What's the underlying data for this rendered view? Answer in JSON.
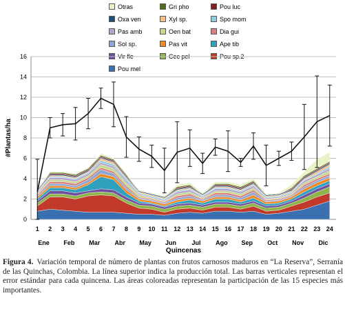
{
  "chart_data": {
    "type": "area",
    "x": [
      1,
      2,
      3,
      4,
      5,
      6,
      7,
      8,
      9,
      10,
      11,
      12,
      13,
      14,
      15,
      16,
      17,
      18,
      19,
      20,
      21,
      22,
      23,
      24
    ],
    "month_labels": [
      "Ene",
      "Feb",
      "Mar",
      "Abr",
      "May",
      "Jun",
      "Jul",
      "Ago",
      "Sep",
      "Oct",
      "Nov",
      "Dic"
    ],
    "xlabel": "Quincenas",
    "ylabel": "#Plantas/ha",
    "ylim": [
      0,
      16
    ],
    "yticks": [
      0,
      2,
      4,
      6,
      8,
      10,
      12,
      14,
      16
    ],
    "legend": [
      "Otras",
      "Gri pho",
      "Pou luc",
      "Oxa ven",
      "Xyl sp.",
      "Spo mom",
      "Pas amb",
      "Oen bat",
      "Dia gui",
      "Sol sp.",
      "Pas vit",
      "Ape tib",
      "Vir fle",
      "Cec pel",
      "Pou sp.2",
      "Pou mel"
    ],
    "colors": {
      "Pou mel": "#3a6fb0",
      "Pou sp.2": "#c0392b",
      "Cec pel": "#8fb54a",
      "Vir fle": "#6f4f9e",
      "Ape tib": "#2fa0bd",
      "Pas vit": "#f08a24",
      "Sol sp.": "#8ba7d6",
      "Dia gui": "#d9807e",
      "Oen bat": "#c6d98f",
      "Pas amb": "#b3a3cf",
      "Spo mom": "#8fcfe0",
      "Xyl sp.": "#f7c08a",
      "Oxa ven": "#1f4e79",
      "Pou luc": "#7f1f1f",
      "Gri pho": "#4e6b1f",
      "Otras": "#e8f2c4"
    },
    "series": [
      {
        "name": "Pou mel",
        "values": [
          0.8,
          1.0,
          0.9,
          0.8,
          0.7,
          0.7,
          0.7,
          0.6,
          0.5,
          0.5,
          0.4,
          0.6,
          0.7,
          0.6,
          0.8,
          0.8,
          0.7,
          0.8,
          0.5,
          0.6,
          0.8,
          1.0,
          1.4,
          1.8
        ]
      },
      {
        "name": "Pou sp.2",
        "values": [
          0.5,
          1.2,
          1.3,
          1.2,
          1.6,
          1.7,
          1.6,
          1.0,
          0.6,
          0.5,
          0.3,
          0.4,
          0.4,
          0.3,
          0.4,
          0.4,
          0.3,
          0.5,
          0.3,
          0.3,
          0.5,
          0.7,
          0.8,
          0.8
        ]
      },
      {
        "name": "Cec pel",
        "values": [
          0.3,
          0.3,
          0.3,
          0.3,
          0.3,
          0.3,
          0.3,
          0.3,
          0.3,
          0.3,
          0.3,
          0.3,
          0.3,
          0.3,
          0.3,
          0.3,
          0.3,
          0.3,
          0.3,
          0.3,
          0.3,
          0.4,
          0.5,
          0.6
        ]
      },
      {
        "name": "Vir fle",
        "values": [
          0.2,
          0.3,
          0.3,
          0.3,
          0.2,
          0.3,
          0.3,
          0.3,
          0.2,
          0.2,
          0.2,
          0.2,
          0.2,
          0.2,
          0.2,
          0.2,
          0.2,
          0.2,
          0.2,
          0.2,
          0.2,
          0.3,
          0.3,
          0.3
        ]
      },
      {
        "name": "Ape tib",
        "values": [
          0.2,
          0.3,
          0.3,
          0.3,
          0.6,
          1.2,
          1.0,
          0.4,
          0.2,
          0.1,
          0.1,
          0.2,
          0.3,
          0.2,
          0.3,
          0.3,
          0.2,
          0.3,
          0.2,
          0.2,
          0.2,
          0.3,
          0.3,
          0.3
        ]
      },
      {
        "name": "Pas vit",
        "values": [
          0.2,
          0.2,
          0.2,
          0.2,
          0.2,
          0.3,
          0.3,
          0.3,
          0.2,
          0.2,
          0.2,
          0.2,
          0.2,
          0.2,
          0.2,
          0.2,
          0.2,
          0.3,
          0.2,
          0.2,
          0.2,
          0.3,
          0.3,
          0.3
        ]
      },
      {
        "name": "Sol sp.",
        "values": [
          0.1,
          0.2,
          0.2,
          0.2,
          0.3,
          0.4,
          0.3,
          0.2,
          0.1,
          0.1,
          0.1,
          0.2,
          0.2,
          0.1,
          0.2,
          0.2,
          0.2,
          0.3,
          0.1,
          0.1,
          0.1,
          0.2,
          0.2,
          0.2
        ]
      },
      {
        "name": "Dia gui",
        "values": [
          0.1,
          0.2,
          0.2,
          0.2,
          0.2,
          0.2,
          0.2,
          0.2,
          0.1,
          0.1,
          0.1,
          0.2,
          0.2,
          0.1,
          0.2,
          0.2,
          0.2,
          0.2,
          0.1,
          0.1,
          0.1,
          0.2,
          0.2,
          0.2
        ]
      },
      {
        "name": "Oen bat",
        "values": [
          0.1,
          0.2,
          0.2,
          0.2,
          0.2,
          0.3,
          0.3,
          0.3,
          0.2,
          0.1,
          0.1,
          0.2,
          0.2,
          0.1,
          0.2,
          0.2,
          0.2,
          0.2,
          0.1,
          0.1,
          0.1,
          0.2,
          0.2,
          0.3
        ]
      },
      {
        "name": "Pas amb",
        "values": [
          0.1,
          0.2,
          0.2,
          0.2,
          0.2,
          0.2,
          0.2,
          0.2,
          0.1,
          0.1,
          0.1,
          0.2,
          0.2,
          0.1,
          0.2,
          0.2,
          0.2,
          0.2,
          0.1,
          0.1,
          0.1,
          0.2,
          0.2,
          0.2
        ]
      },
      {
        "name": "Spo mom",
        "values": [
          0.1,
          0.1,
          0.1,
          0.1,
          0.1,
          0.2,
          0.2,
          0.2,
          0.1,
          0.1,
          0.1,
          0.1,
          0.1,
          0.1,
          0.1,
          0.1,
          0.1,
          0.1,
          0.1,
          0.1,
          0.1,
          0.1,
          0.1,
          0.2
        ]
      },
      {
        "name": "Xyl sp.",
        "values": [
          0.1,
          0.1,
          0.1,
          0.1,
          0.1,
          0.2,
          0.2,
          0.1,
          0.1,
          0.1,
          0.1,
          0.1,
          0.1,
          0.1,
          0.1,
          0.1,
          0.1,
          0.1,
          0.1,
          0.1,
          0.1,
          0.1,
          0.2,
          0.2
        ]
      },
      {
        "name": "Oxa ven",
        "values": [
          0.1,
          0.1,
          0.1,
          0.1,
          0.1,
          0.1,
          0.1,
          0.1,
          0.1,
          0.1,
          0.1,
          0.1,
          0.1,
          0.1,
          0.1,
          0.1,
          0.1,
          0.1,
          0.1,
          0.1,
          0.1,
          0.1,
          0.1,
          0.1
        ]
      },
      {
        "name": "Pou luc",
        "values": [
          0.0,
          0.1,
          0.1,
          0.1,
          0.1,
          0.1,
          0.1,
          0.1,
          0.0,
          0.0,
          0.0,
          0.1,
          0.1,
          0.0,
          0.1,
          0.1,
          0.1,
          0.1,
          0.0,
          0.0,
          0.1,
          0.1,
          0.1,
          0.1
        ]
      },
      {
        "name": "Gri pho",
        "values": [
          0.0,
          0.1,
          0.1,
          0.1,
          0.1,
          0.1,
          0.1,
          0.1,
          0.0,
          0.0,
          0.0,
          0.1,
          0.1,
          0.0,
          0.1,
          0.1,
          0.1,
          0.1,
          0.0,
          0.0,
          0.1,
          0.1,
          0.1,
          0.1
        ]
      },
      {
        "name": "Otras",
        "values": [
          0.1,
          0.1,
          0.1,
          0.1,
          0.1,
          0.2,
          0.1,
          0.1,
          0.1,
          0.1,
          0.1,
          0.2,
          0.2,
          0.1,
          0.2,
          0.2,
          0.2,
          0.2,
          0.1,
          0.1,
          0.3,
          0.4,
          0.9,
          0.9
        ]
      }
    ],
    "total": {
      "name": "Total",
      "values": [
        2.7,
        9.0,
        9.3,
        9.4,
        10.4,
        11.9,
        11.3,
        8.1,
        6.9,
        6.2,
        4.8,
        6.6,
        7.0,
        5.5,
        7.1,
        6.7,
        5.6,
        7.2,
        5.3,
        6.0,
        6.7,
        8.1,
        9.6,
        10.2
      ],
      "error": [
        3.2,
        1.0,
        1.1,
        1.6,
        1.5,
        1.0,
        2.2,
        2.0,
        1.2,
        1.1,
        2.2,
        3.0,
        1.8,
        1.0,
        0.8,
        2.0,
        0.4,
        1.3,
        2.0,
        0.7,
        0.9,
        3.2,
        4.5,
        3.0
      ]
    }
  },
  "caption": {
    "label": "Figura 4.",
    "text": "Variación temporal de número de plantas con frutos carnosos maduros en “La Reserva”, Serranía de las Quinchas, Colombia. La línea superior indica la producción total. Las barras verticales representan el error estándar para cada quincena. Las áreas coloreadas representan la participación de las 15 especies más importantes."
  }
}
